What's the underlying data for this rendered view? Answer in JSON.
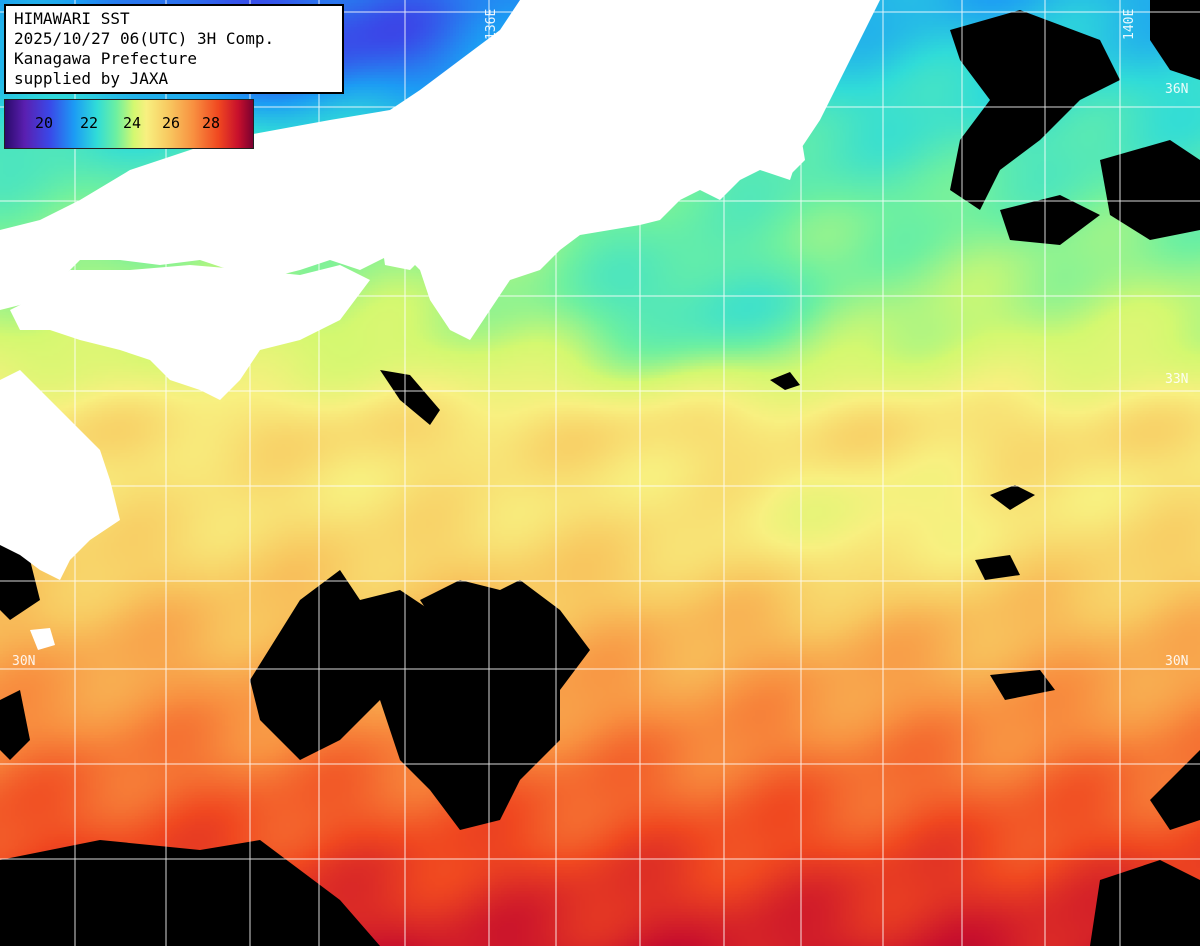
{
  "title_lines": [
    "HIMAWARI SST",
    "2025/10/27 06(UTC) 3H Comp.",
    "Kanagawa Prefecture",
    "supplied by JAXA"
  ],
  "legend": {
    "ticks": [
      "20",
      "22",
      "24",
      "26",
      "28"
    ],
    "colors": [
      "#2a0a6a",
      "#5a1fb0",
      "#3a48e8",
      "#1c9cf4",
      "#30dcd8",
      "#6ef0a0",
      "#d4f870",
      "#f8f080",
      "#f8c860",
      "#f89040",
      "#f04820",
      "#c8102c",
      "#7a0030"
    ]
  },
  "grid_labels": {
    "lat_33_right": "33N",
    "lat_36_right": "36N",
    "lat_30_left": "30N",
    "lat_30_right": "30N",
    "lon_136": "136E",
    "lon_140": "140E"
  },
  "colors": {
    "land": "#ffffff",
    "cloud": "#000000",
    "grid": "#ffffff"
  }
}
